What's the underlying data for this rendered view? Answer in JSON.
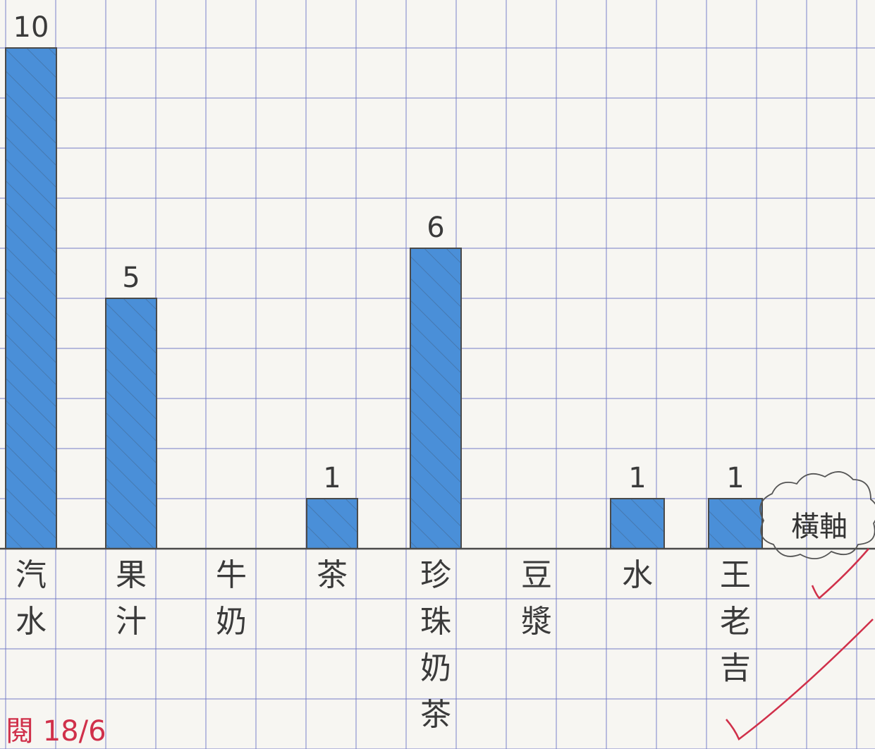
{
  "chart_data": {
    "type": "bar",
    "categories": [
      "汽水",
      "果汁",
      "牛奶",
      "茶",
      "珍珠奶茶",
      "豆漿",
      "水",
      "王老吉"
    ],
    "values": [
      10,
      5,
      0,
      1,
      6,
      0,
      1,
      1
    ],
    "value_labels": [
      "10",
      "5",
      "",
      "1",
      "6",
      "",
      "1",
      "1"
    ],
    "axis_note": "橫軸",
    "ylim": [
      0,
      10.4
    ],
    "grid": true,
    "colors": {
      "bar": "#4a8fd8",
      "bar_outline": "#4a4a4a",
      "grid": "#6d74c4",
      "paper": "#f7f6f2",
      "check": "#d0304a"
    }
  },
  "corner_mark": {
    "text": "閱 18/6"
  }
}
